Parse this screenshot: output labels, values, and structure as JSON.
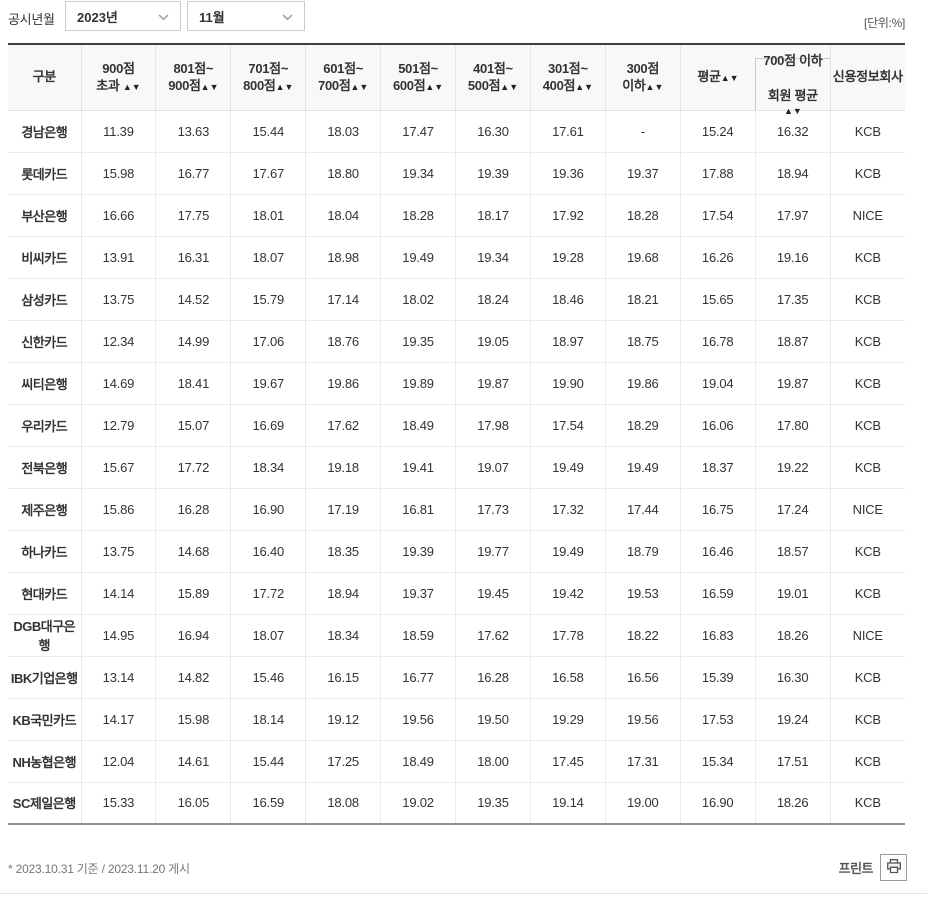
{
  "controls": {
    "label": "공시년월",
    "year_select": {
      "value": "2023년"
    },
    "month_select": {
      "value": "11월"
    }
  },
  "unit_note": "[단위:%]",
  "table": {
    "headers": [
      {
        "key": "gubun",
        "label": "구분"
      },
      {
        "key": "over-900",
        "line1": "900점",
        "line2": "초과 ",
        "arrows": "▲▼"
      },
      {
        "key": "801-900",
        "line1": "801점~",
        "line2": "900점",
        "arrows": "▲▼"
      },
      {
        "key": "701-800",
        "line1": "701점~",
        "line2": "800점",
        "arrows": "▲▼"
      },
      {
        "key": "601-700",
        "line1": "601점~",
        "line2": "700점",
        "arrows": "▲▼"
      },
      {
        "key": "501-600",
        "line1": "501점~",
        "line2": "600점",
        "arrows": "▲▼"
      },
      {
        "key": "401-500",
        "line1": "401점~",
        "line2": "500점",
        "arrows": "▲▼"
      },
      {
        "key": "301-400",
        "line1": "301점~",
        "line2": "400점",
        "arrows": "▲▼"
      },
      {
        "key": "under-300",
        "line1": "300점",
        "line2": "이하",
        "arrows": "▲▼"
      },
      {
        "key": "average",
        "line1": "평균",
        "arrows": "▲▼",
        "single": true,
        "noRight": true
      },
      {
        "key": "under-700-avg",
        "line1": "700점 이하",
        "line2": "회원 평균",
        "arrows": "▲▼",
        "boxed": true
      },
      {
        "key": "credit-bureau",
        "label": "신용정보회사"
      }
    ],
    "rows": [
      {
        "name": "경남은행",
        "values": [
          "11.39",
          "13.63",
          "15.44",
          "18.03",
          "17.47",
          "16.30",
          "17.61",
          "-",
          "15.24",
          "16.32"
        ],
        "company": "KCB"
      },
      {
        "name": "롯데카드",
        "values": [
          "15.98",
          "16.77",
          "17.67",
          "18.80",
          "19.34",
          "19.39",
          "19.36",
          "19.37",
          "17.88",
          "18.94"
        ],
        "company": "KCB"
      },
      {
        "name": "부산은행",
        "values": [
          "16.66",
          "17.75",
          "18.01",
          "18.04",
          "18.28",
          "18.17",
          "17.92",
          "18.28",
          "17.54",
          "17.97"
        ],
        "company": "NICE"
      },
      {
        "name": "비씨카드",
        "values": [
          "13.91",
          "16.31",
          "18.07",
          "18.98",
          "19.49",
          "19.34",
          "19.28",
          "19.68",
          "16.26",
          "19.16"
        ],
        "company": "KCB"
      },
      {
        "name": "삼성카드",
        "values": [
          "13.75",
          "14.52",
          "15.79",
          "17.14",
          "18.02",
          "18.24",
          "18.46",
          "18.21",
          "15.65",
          "17.35"
        ],
        "company": "KCB"
      },
      {
        "name": "신한카드",
        "values": [
          "12.34",
          "14.99",
          "17.06",
          "18.76",
          "19.35",
          "19.05",
          "18.97",
          "18.75",
          "16.78",
          "18.87"
        ],
        "company": "KCB"
      },
      {
        "name": "씨티은행",
        "values": [
          "14.69",
          "18.41",
          "19.67",
          "19.86",
          "19.89",
          "19.87",
          "19.90",
          "19.86",
          "19.04",
          "19.87"
        ],
        "company": "KCB"
      },
      {
        "name": "우리카드",
        "values": [
          "12.79",
          "15.07",
          "16.69",
          "17.62",
          "18.49",
          "17.98",
          "17.54",
          "18.29",
          "16.06",
          "17.80"
        ],
        "company": "KCB"
      },
      {
        "name": "전북은행",
        "values": [
          "15.67",
          "17.72",
          "18.34",
          "19.18",
          "19.41",
          "19.07",
          "19.49",
          "19.49",
          "18.37",
          "19.22"
        ],
        "company": "KCB"
      },
      {
        "name": "제주은행",
        "values": [
          "15.86",
          "16.28",
          "16.90",
          "17.19",
          "16.81",
          "17.73",
          "17.32",
          "17.44",
          "16.75",
          "17.24"
        ],
        "company": "NICE"
      },
      {
        "name": "하나카드",
        "values": [
          "13.75",
          "14.68",
          "16.40",
          "18.35",
          "19.39",
          "19.77",
          "19.49",
          "18.79",
          "16.46",
          "18.57"
        ],
        "company": "KCB"
      },
      {
        "name": "현대카드",
        "values": [
          "14.14",
          "15.89",
          "17.72",
          "18.94",
          "19.37",
          "19.45",
          "19.42",
          "19.53",
          "16.59",
          "19.01"
        ],
        "company": "KCB"
      },
      {
        "name": "DGB대구은행",
        "values": [
          "14.95",
          "16.94",
          "18.07",
          "18.34",
          "18.59",
          "17.62",
          "17.78",
          "18.22",
          "16.83",
          "18.26"
        ],
        "company": "NICE"
      },
      {
        "name": "IBK기업은행",
        "values": [
          "13.14",
          "14.82",
          "15.46",
          "16.15",
          "16.77",
          "16.28",
          "16.58",
          "16.56",
          "15.39",
          "16.30"
        ],
        "company": "KCB"
      },
      {
        "name": "KB국민카드",
        "values": [
          "14.17",
          "15.98",
          "18.14",
          "19.12",
          "19.56",
          "19.50",
          "19.29",
          "19.56",
          "17.53",
          "19.24"
        ],
        "company": "KCB"
      },
      {
        "name": "NH농협은행",
        "values": [
          "12.04",
          "14.61",
          "15.44",
          "17.25",
          "18.49",
          "18.00",
          "17.45",
          "17.31",
          "15.34",
          "17.51"
        ],
        "company": "KCB"
      },
      {
        "name": "SC제일은행",
        "values": [
          "15.33",
          "16.05",
          "16.59",
          "18.08",
          "19.02",
          "19.35",
          "19.14",
          "19.00",
          "16.90",
          "18.26"
        ],
        "company": "KCB"
      }
    ]
  },
  "footer": {
    "note": "* 2023.10.31 기준 / 2023.11.20 게시",
    "print_label": "프린트"
  }
}
